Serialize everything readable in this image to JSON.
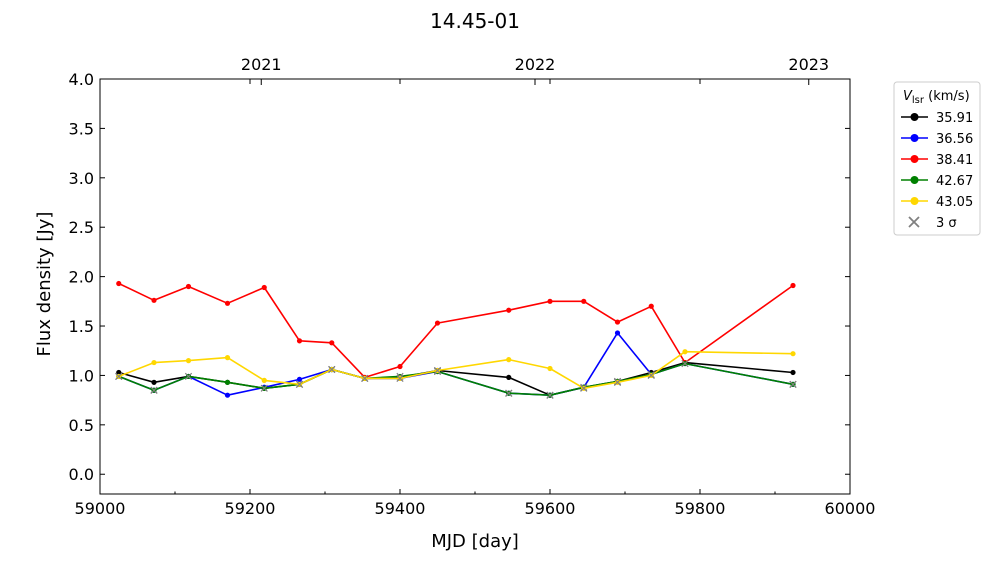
{
  "chart_data": {
    "type": "line",
    "title": "14.45-01",
    "xlabel": "MJD [day]",
    "ylabel": "Flux density [Jy]",
    "xlim": [
      59000,
      60000
    ],
    "ylim": [
      -0.2,
      4.0
    ],
    "xticks": [
      59000,
      59200,
      59400,
      59600,
      59800,
      60000
    ],
    "yticks": [
      0.0,
      0.5,
      1.0,
      1.5,
      2.0,
      2.5,
      3.0,
      3.5,
      4.0
    ],
    "ytick_labels": [
      "0.0",
      "0.5",
      "1.0",
      "1.5",
      "2.0",
      "2.5",
      "3.0",
      "3.5",
      "4.0"
    ],
    "top_axis": {
      "labels": [
        {
          "text": "2021",
          "x": 59215
        },
        {
          "text": "2022",
          "x": 59580
        },
        {
          "text": "2023",
          "x": 59945
        }
      ]
    },
    "grid": false,
    "legend": {
      "title_main": "V",
      "title_sub": "lsr",
      "title_unit": " (km/s)",
      "placement": "outside-top-right",
      "sigma_label": "3 σ",
      "sigma_color": "#808080"
    },
    "x": [
      59025,
      59072,
      59118,
      59170,
      59219,
      59266,
      59309,
      59353,
      59400,
      59450,
      59545,
      59600,
      59645,
      59690,
      59735,
      59780,
      59924
    ],
    "series": [
      {
        "name": "35.91",
        "color": "#000000",
        "values": [
          1.03,
          0.93,
          0.99,
          0.93,
          0.87,
          0.91,
          1.06,
          0.97,
          0.98,
          1.05,
          0.98,
          0.8,
          0.88,
          0.94,
          1.03,
          1.13,
          1.03
        ],
        "upper_limits": [
          false,
          false,
          false,
          false,
          false,
          false,
          false,
          false,
          false,
          false,
          false,
          false,
          false,
          false,
          false,
          false,
          false
        ]
      },
      {
        "name": "36.56",
        "color": "#0000ff",
        "values": [
          0.99,
          0.85,
          0.99,
          0.8,
          0.88,
          0.96,
          1.06,
          0.97,
          0.97,
          1.04,
          0.82,
          0.8,
          0.88,
          1.43,
          1.01,
          1.12,
          0.91
        ],
        "upper_limits": [
          false,
          true,
          false,
          false,
          false,
          false,
          false,
          false,
          false,
          false,
          true,
          true,
          false,
          false,
          false,
          false,
          true
        ]
      },
      {
        "name": "38.41",
        "color": "#ff0000",
        "values": [
          1.93,
          1.76,
          1.9,
          1.73,
          1.89,
          1.35,
          1.33,
          0.98,
          1.09,
          1.53,
          1.66,
          1.75,
          1.75,
          1.54,
          1.7,
          1.13,
          1.91
        ],
        "upper_limits": [
          false,
          false,
          false,
          false,
          false,
          false,
          false,
          false,
          false,
          false,
          false,
          false,
          false,
          false,
          false,
          false,
          false
        ]
      },
      {
        "name": "42.67",
        "color": "#008000",
        "values": [
          0.99,
          0.85,
          0.99,
          0.93,
          0.87,
          0.91,
          1.06,
          0.97,
          0.99,
          1.04,
          0.82,
          0.8,
          0.88,
          0.94,
          1.01,
          1.12,
          0.91
        ],
        "upper_limits": [
          true,
          true,
          true,
          false,
          true,
          true,
          true,
          true,
          true,
          true,
          true,
          true,
          true,
          true,
          true,
          true,
          true
        ]
      },
      {
        "name": "43.05",
        "color": "#ffd700",
        "values": [
          0.99,
          1.13,
          1.15,
          1.18,
          0.95,
          0.91,
          1.06,
          0.97,
          0.97,
          1.05,
          1.16,
          1.07,
          0.87,
          0.93,
          1.0,
          1.24,
          1.22
        ],
        "upper_limits": [
          true,
          false,
          false,
          false,
          false,
          true,
          true,
          true,
          true,
          true,
          false,
          false,
          true,
          true,
          true,
          false,
          false
        ]
      }
    ]
  }
}
